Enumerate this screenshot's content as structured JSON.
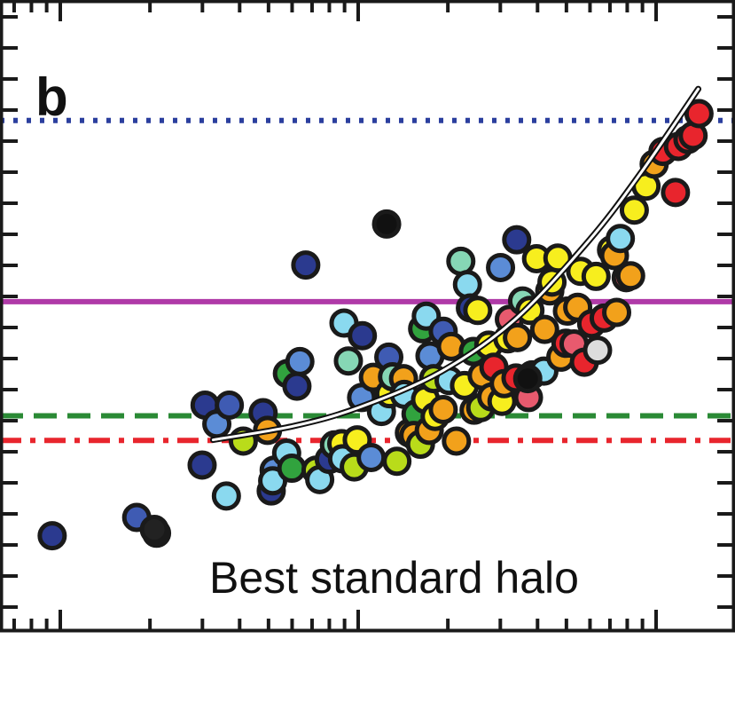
{
  "chart_data": {
    "type": "scatter",
    "panel_label": "b",
    "annotation": "Best standard halo",
    "x_scale": "log",
    "xlim": [
      0,
      1
    ],
    "ylim": [
      0,
      1
    ],
    "grid": false,
    "reference_lines": [
      {
        "style": "dotted",
        "color": "#2b3f9e",
        "y": 0.809
      },
      {
        "style": "solid",
        "color": "#b03aa8",
        "y": 0.522
      },
      {
        "style": "dashed",
        "color": "#2a8a35",
        "y": 0.341
      },
      {
        "style": "dashdot",
        "color": "#e8252d",
        "y": 0.302
      }
    ],
    "best_fit_curve": [
      [
        0.29,
        0.303
      ],
      [
        0.4,
        0.325
      ],
      [
        0.49,
        0.355
      ],
      [
        0.6,
        0.411
      ],
      [
        0.7,
        0.493
      ],
      [
        0.8,
        0.617
      ],
      [
        0.87,
        0.723
      ],
      [
        0.95,
        0.859
      ]
    ],
    "points": [
      [
        0.071,
        0.151,
        "#2b3a8f"
      ],
      [
        0.186,
        0.18,
        "#3f5bb3"
      ],
      [
        0.213,
        0.155,
        "#3f5bb3"
      ],
      [
        0.21,
        0.161,
        "#222222"
      ],
      [
        0.275,
        0.263,
        "#2b3a8f"
      ],
      [
        0.308,
        0.214,
        "#8ad9ef"
      ],
      [
        0.279,
        0.358,
        "#2b3a8f"
      ],
      [
        0.295,
        0.328,
        "#5b8cd6"
      ],
      [
        0.312,
        0.358,
        "#3f5bb3"
      ],
      [
        0.331,
        0.301,
        "#b9dc1a"
      ],
      [
        0.358,
        0.346,
        "#2b3a8f"
      ],
      [
        0.364,
        0.318,
        "#f2a11b"
      ],
      [
        0.373,
        0.255,
        "#5b8cd6"
      ],
      [
        0.369,
        0.222,
        "#2b3a8f"
      ],
      [
        0.371,
        0.238,
        "#8ad9ef"
      ],
      [
        0.39,
        0.282,
        "#8ad9ef"
      ],
      [
        0.397,
        0.258,
        "#31a33e"
      ],
      [
        0.391,
        0.408,
        "#31a33e"
      ],
      [
        0.408,
        0.427,
        "#5b8cd6"
      ],
      [
        0.404,
        0.388,
        "#2b3a8f"
      ],
      [
        0.416,
        0.58,
        "#2b3a8f"
      ],
      [
        0.43,
        0.255,
        "#b9dc1a"
      ],
      [
        0.435,
        0.24,
        "#8ad9ef"
      ],
      [
        0.448,
        0.272,
        "#2b3a8f"
      ],
      [
        0.455,
        0.295,
        "#86d7b5"
      ],
      [
        0.465,
        0.297,
        "#f7ee1e"
      ],
      [
        0.466,
        0.273,
        "#8ad9ef"
      ],
      [
        0.474,
        0.428,
        "#86d7b5"
      ],
      [
        0.468,
        0.488,
        "#8ad9ef"
      ],
      [
        0.482,
        0.26,
        "#b9dc1a"
      ],
      [
        0.492,
        0.37,
        "#5b8cd6"
      ],
      [
        0.493,
        0.468,
        "#2b3a8f"
      ],
      [
        0.486,
        0.303,
        "#f7ee1e"
      ],
      [
        0.508,
        0.402,
        "#f2a11b"
      ],
      [
        0.505,
        0.275,
        "#5b8cd6"
      ],
      [
        0.519,
        0.348,
        "#8ad9ef"
      ],
      [
        0.529,
        0.434,
        "#3f5bb3"
      ],
      [
        0.53,
        0.376,
        "#f7ee1e"
      ],
      [
        0.54,
        0.269,
        "#b9dc1a"
      ],
      [
        0.534,
        0.403,
        "#86d7b5"
      ],
      [
        0.549,
        0.4,
        "#f2a11b"
      ],
      [
        0.55,
        0.375,
        "#8ad9ef"
      ],
      [
        0.557,
        0.314,
        "#f2a11b"
      ],
      [
        0.566,
        0.344,
        "#31a33e"
      ],
      [
        0.563,
        0.31,
        "#f2a11b"
      ],
      [
        0.572,
        0.296,
        "#b9dc1a"
      ],
      [
        0.575,
        0.479,
        "#31a33e"
      ],
      [
        0.579,
        0.367,
        "#f7ee1e"
      ],
      [
        0.58,
        0.499,
        "#8ad9ef"
      ],
      [
        0.584,
        0.318,
        "#f2a11b"
      ],
      [
        0.585,
        0.436,
        "#5b8cd6"
      ],
      [
        0.592,
        0.34,
        "#f7ee1e"
      ],
      [
        0.59,
        0.4,
        "#b9dc1a"
      ],
      [
        0.603,
        0.475,
        "#3f5bb3"
      ],
      [
        0.603,
        0.351,
        "#f2a11b"
      ],
      [
        0.611,
        0.397,
        "#8ad9ef"
      ],
      [
        0.614,
        0.451,
        "#f2a11b"
      ],
      [
        0.621,
        0.301,
        "#f2a11b"
      ],
      [
        0.627,
        0.586,
        "#86d7b5"
      ],
      [
        0.632,
        0.389,
        "#f7ee1e"
      ],
      [
        0.636,
        0.549,
        "#8ad9ef"
      ],
      [
        0.64,
        0.512,
        "#2b3a8f"
      ],
      [
        0.645,
        0.35,
        "#f2a11b"
      ],
      [
        0.644,
        0.443,
        "#31a33e"
      ],
      [
        0.65,
        0.508,
        "#f7ee1e"
      ],
      [
        0.654,
        0.354,
        "#b9dc1a"
      ],
      [
        0.656,
        0.405,
        "#f2a11b"
      ],
      [
        0.665,
        0.453,
        "#f7ee1e"
      ],
      [
        0.669,
        0.371,
        "#f2a11b"
      ],
      [
        0.672,
        0.418,
        "#e8252d"
      ],
      [
        0.681,
        0.576,
        "#5b8cd6"
      ],
      [
        0.683,
        0.364,
        "#f7ee1e"
      ],
      [
        0.686,
        0.392,
        "#f2a11b"
      ],
      [
        0.691,
        0.463,
        "#f7ee1e"
      ],
      [
        0.693,
        0.494,
        "#e85a6e"
      ],
      [
        0.702,
        0.401,
        "#e8252d"
      ],
      [
        0.703,
        0.62,
        "#2b3a8f"
      ],
      [
        0.704,
        0.465,
        "#f2a11b"
      ],
      [
        0.711,
        0.523,
        "#86d7b5"
      ],
      [
        0.719,
        0.37,
        "#e85a6e"
      ],
      [
        0.721,
        0.508,
        "#f7ee1e"
      ],
      [
        0.724,
        0.406,
        "#31a33e"
      ],
      [
        0.73,
        0.59,
        "#f7ee1e"
      ],
      [
        0.741,
        0.478,
        "#f2a11b"
      ],
      [
        0.74,
        0.412,
        "#8ad9ef"
      ],
      [
        0.748,
        0.539,
        "#f2a11b"
      ],
      [
        0.751,
        0.553,
        "#f7ee1e"
      ],
      [
        0.759,
        0.591,
        "#f7ee1e"
      ],
      [
        0.763,
        0.434,
        "#f2a11b"
      ],
      [
        0.77,
        0.456,
        "#e8252d"
      ],
      [
        0.772,
        0.507,
        "#f2a11b"
      ],
      [
        0.781,
        0.455,
        "#e85a6e"
      ],
      [
        0.786,
        0.513,
        "#f2a11b"
      ],
      [
        0.79,
        0.57,
        "#f7ee1e"
      ],
      [
        0.795,
        0.426,
        "#e8252d"
      ],
      [
        0.805,
        0.487,
        "#e8252d"
      ],
      [
        0.811,
        0.562,
        "#f7ee1e"
      ],
      [
        0.813,
        0.445,
        "#dddddd"
      ],
      [
        0.822,
        0.496,
        "#e8252d"
      ],
      [
        0.832,
        0.604,
        "#f7ee1e"
      ],
      [
        0.836,
        0.595,
        "#f2a11b"
      ],
      [
        0.839,
        0.505,
        "#f2a11b"
      ],
      [
        0.844,
        0.622,
        "#8ad9ef"
      ],
      [
        0.852,
        0.56,
        "#e85a6e"
      ],
      [
        0.858,
        0.563,
        "#f2a11b"
      ],
      [
        0.863,
        0.667,
        "#f7ee1e"
      ],
      [
        0.879,
        0.705,
        "#f7ee1e"
      ],
      [
        0.89,
        0.74,
        "#f2a11b"
      ],
      [
        0.902,
        0.76,
        "#e8252d"
      ],
      [
        0.919,
        0.695,
        "#e8252d"
      ],
      [
        0.923,
        0.768,
        "#e8252d"
      ],
      [
        0.936,
        0.779,
        "#e8252d"
      ],
      [
        0.943,
        0.785,
        "#e8252d"
      ],
      [
        0.951,
        0.82,
        "#e8252d"
      ],
      [
        0.526,
        0.645,
        "#111111"
      ],
      [
        0.718,
        0.4,
        "#111111"
      ]
    ]
  }
}
